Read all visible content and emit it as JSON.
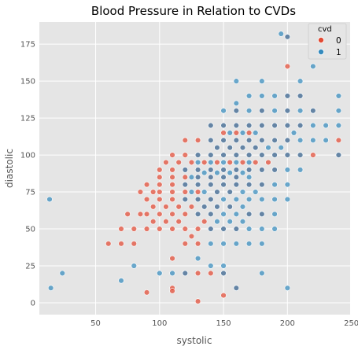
{
  "chart_data": {
    "type": "scatter",
    "title": "Blood Pressure in Relation to CVDs",
    "xlabel": "systolic",
    "ylabel": "diastolic",
    "xlim": [
      6,
      249
    ],
    "ylim": [
      -8,
      190
    ],
    "xticks": [
      50,
      100,
      150,
      200,
      250
    ],
    "yticks": [
      0,
      25,
      50,
      75,
      100,
      125,
      150,
      175
    ],
    "grid": true,
    "legend": {
      "title": "cvd",
      "placement": "top-right"
    },
    "series": [
      {
        "name": "0",
        "color": "#E24A33",
        "points": [
          [
            60,
            40
          ],
          [
            70,
            40
          ],
          [
            80,
            40
          ],
          [
            70,
            50
          ],
          [
            80,
            50
          ],
          [
            90,
            50
          ],
          [
            100,
            50
          ],
          [
            110,
            50
          ],
          [
            120,
            50
          ],
          [
            130,
            50
          ],
          [
            90,
            60
          ],
          [
            100,
            60
          ],
          [
            110,
            60
          ],
          [
            120,
            60
          ],
          [
            130,
            60
          ],
          [
            140,
            60
          ],
          [
            75,
            60
          ],
          [
            85,
            60
          ],
          [
            95,
            65
          ],
          [
            105,
            65
          ],
          [
            90,
            70
          ],
          [
            100,
            70
          ],
          [
            110,
            70
          ],
          [
            120,
            70
          ],
          [
            130,
            70
          ],
          [
            140,
            70
          ],
          [
            100,
            75
          ],
          [
            110,
            75
          ],
          [
            120,
            75
          ],
          [
            130,
            75
          ],
          [
            90,
            80
          ],
          [
            100,
            80
          ],
          [
            110,
            80
          ],
          [
            120,
            80
          ],
          [
            130,
            80
          ],
          [
            140,
            80
          ],
          [
            150,
            80
          ],
          [
            160,
            80
          ],
          [
            170,
            80
          ],
          [
            180,
            80
          ],
          [
            100,
            85
          ],
          [
            110,
            85
          ],
          [
            120,
            85
          ],
          [
            130,
            85
          ],
          [
            140,
            85
          ],
          [
            150,
            85
          ],
          [
            160,
            85
          ],
          [
            100,
            90
          ],
          [
            110,
            90
          ],
          [
            120,
            90
          ],
          [
            130,
            90
          ],
          [
            140,
            90
          ],
          [
            150,
            90
          ],
          [
            160,
            90
          ],
          [
            170,
            90
          ],
          [
            180,
            90
          ],
          [
            190,
            90
          ],
          [
            110,
            100
          ],
          [
            120,
            100
          ],
          [
            130,
            100
          ],
          [
            140,
            100
          ],
          [
            150,
            100
          ],
          [
            160,
            100
          ],
          [
            170,
            100
          ],
          [
            180,
            100
          ],
          [
            190,
            100
          ],
          [
            200,
            100
          ],
          [
            210,
            100
          ],
          [
            220,
            100
          ],
          [
            240,
            100
          ],
          [
            120,
            110
          ],
          [
            130,
            110
          ],
          [
            140,
            110
          ],
          [
            150,
            110
          ],
          [
            160,
            110
          ],
          [
            170,
            110
          ],
          [
            180,
            110
          ],
          [
            190,
            110
          ],
          [
            200,
            110
          ],
          [
            240,
            110
          ],
          [
            140,
            120
          ],
          [
            150,
            120
          ],
          [
            160,
            120
          ],
          [
            170,
            120
          ],
          [
            180,
            120
          ],
          [
            190,
            120
          ],
          [
            200,
            120
          ],
          [
            210,
            120
          ],
          [
            160,
            130
          ],
          [
            180,
            130
          ],
          [
            200,
            130
          ],
          [
            220,
            130
          ],
          [
            200,
            140
          ],
          [
            210,
            140
          ],
          [
            200,
            160
          ],
          [
            200,
            180
          ],
          [
            120,
            40
          ],
          [
            130,
            40
          ],
          [
            110,
            30
          ],
          [
            120,
            20
          ],
          [
            140,
            20
          ],
          [
            150,
            20
          ],
          [
            110,
            10
          ],
          [
            110,
            8
          ],
          [
            90,
            7
          ],
          [
            130,
            1
          ],
          [
            130,
            20
          ],
          [
            125,
            45
          ],
          [
            115,
            55
          ],
          [
            135,
            55
          ],
          [
            105,
            55
          ],
          [
            95,
            55
          ],
          [
            85,
            75
          ],
          [
            95,
            75
          ],
          [
            105,
            95
          ],
          [
            115,
            95
          ],
          [
            125,
            95
          ],
          [
            135,
            95
          ],
          [
            145,
            95
          ],
          [
            155,
            95
          ],
          [
            165,
            95
          ],
          [
            175,
            95
          ],
          [
            185,
            95
          ],
          [
            145,
            105
          ],
          [
            155,
            105
          ],
          [
            165,
            105
          ],
          [
            175,
            105
          ],
          [
            150,
            115
          ],
          [
            160,
            115
          ],
          [
            170,
            115
          ],
          [
            145,
            65
          ],
          [
            155,
            65
          ],
          [
            135,
            65
          ],
          [
            125,
            65
          ],
          [
            115,
            65
          ],
          [
            145,
            75
          ],
          [
            155,
            75
          ],
          [
            140,
            50
          ],
          [
            150,
            50
          ],
          [
            160,
            50
          ],
          [
            170,
            60
          ],
          [
            180,
            60
          ],
          [
            160,
            10
          ],
          [
            150,
            5
          ]
        ]
      },
      {
        "name": "1",
        "color": "#348ABD",
        "points": [
          [
            14,
            70
          ],
          [
            15,
            10
          ],
          [
            24,
            20
          ],
          [
            70,
            15
          ],
          [
            80,
            25
          ],
          [
            100,
            20
          ],
          [
            110,
            20
          ],
          [
            120,
            20
          ],
          [
            130,
            30
          ],
          [
            140,
            25
          ],
          [
            150,
            20
          ],
          [
            150,
            25
          ],
          [
            160,
            10
          ],
          [
            180,
            20
          ],
          [
            200,
            10
          ],
          [
            140,
            40
          ],
          [
            150,
            40
          ],
          [
            160,
            40
          ],
          [
            170,
            40
          ],
          [
            180,
            40
          ],
          [
            140,
            50
          ],
          [
            150,
            50
          ],
          [
            160,
            50
          ],
          [
            170,
            50
          ],
          [
            180,
            50
          ],
          [
            190,
            50
          ],
          [
            130,
            60
          ],
          [
            140,
            60
          ],
          [
            150,
            60
          ],
          [
            160,
            60
          ],
          [
            170,
            60
          ],
          [
            180,
            60
          ],
          [
            190,
            60
          ],
          [
            120,
            70
          ],
          [
            130,
            70
          ],
          [
            140,
            70
          ],
          [
            150,
            70
          ],
          [
            160,
            70
          ],
          [
            170,
            70
          ],
          [
            180,
            70
          ],
          [
            190,
            70
          ],
          [
            200,
            70
          ],
          [
            120,
            80
          ],
          [
            130,
            80
          ],
          [
            140,
            80
          ],
          [
            150,
            80
          ],
          [
            160,
            80
          ],
          [
            170,
            80
          ],
          [
            180,
            80
          ],
          [
            190,
            80
          ],
          [
            200,
            80
          ],
          [
            130,
            85
          ],
          [
            140,
            85
          ],
          [
            150,
            85
          ],
          [
            160,
            85
          ],
          [
            170,
            85
          ],
          [
            120,
            90
          ],
          [
            130,
            90
          ],
          [
            140,
            90
          ],
          [
            150,
            90
          ],
          [
            160,
            90
          ],
          [
            170,
            90
          ],
          [
            180,
            90
          ],
          [
            190,
            90
          ],
          [
            200,
            90
          ],
          [
            210,
            90
          ],
          [
            130,
            95
          ],
          [
            140,
            95
          ],
          [
            150,
            95
          ],
          [
            160,
            95
          ],
          [
            170,
            95
          ],
          [
            130,
            100
          ],
          [
            140,
            100
          ],
          [
            150,
            100
          ],
          [
            160,
            100
          ],
          [
            170,
            100
          ],
          [
            180,
            100
          ],
          [
            190,
            100
          ],
          [
            200,
            100
          ],
          [
            210,
            100
          ],
          [
            240,
            100
          ],
          [
            140,
            110
          ],
          [
            150,
            110
          ],
          [
            160,
            110
          ],
          [
            170,
            110
          ],
          [
            180,
            110
          ],
          [
            190,
            110
          ],
          [
            200,
            110
          ],
          [
            210,
            110
          ],
          [
            220,
            110
          ],
          [
            140,
            120
          ],
          [
            150,
            120
          ],
          [
            160,
            120
          ],
          [
            170,
            120
          ],
          [
            180,
            120
          ],
          [
            190,
            120
          ],
          [
            200,
            120
          ],
          [
            210,
            120
          ],
          [
            220,
            120
          ],
          [
            240,
            120
          ],
          [
            150,
            130
          ],
          [
            160,
            130
          ],
          [
            170,
            130
          ],
          [
            180,
            130
          ],
          [
            190,
            130
          ],
          [
            200,
            130
          ],
          [
            210,
            130
          ],
          [
            220,
            130
          ],
          [
            240,
            130
          ],
          [
            170,
            140
          ],
          [
            180,
            140
          ],
          [
            190,
            140
          ],
          [
            200,
            140
          ],
          [
            210,
            140
          ],
          [
            240,
            140
          ],
          [
            160,
            150
          ],
          [
            180,
            150
          ],
          [
            210,
            150
          ],
          [
            220,
            160
          ],
          [
            195,
            182
          ],
          [
            200,
            180
          ],
          [
            160,
            135
          ],
          [
            145,
            105
          ],
          [
            155,
            105
          ],
          [
            165,
            105
          ],
          [
            175,
            105
          ],
          [
            155,
            115
          ],
          [
            165,
            115
          ],
          [
            175,
            115
          ],
          [
            135,
            75
          ],
          [
            145,
            75
          ],
          [
            155,
            75
          ],
          [
            165,
            75
          ],
          [
            175,
            75
          ],
          [
            135,
            65
          ],
          [
            145,
            65
          ],
          [
            155,
            65
          ],
          [
            165,
            65
          ],
          [
            145,
            55
          ],
          [
            155,
            55
          ],
          [
            165,
            55
          ],
          [
            125,
            75
          ],
          [
            125,
            85
          ],
          [
            135,
            88
          ],
          [
            145,
            88
          ],
          [
            155,
            88
          ],
          [
            165,
            88
          ],
          [
            230,
            110
          ],
          [
            230,
            120
          ],
          [
            205,
            115
          ],
          [
            195,
            105
          ],
          [
            185,
            105
          ]
        ]
      }
    ]
  }
}
